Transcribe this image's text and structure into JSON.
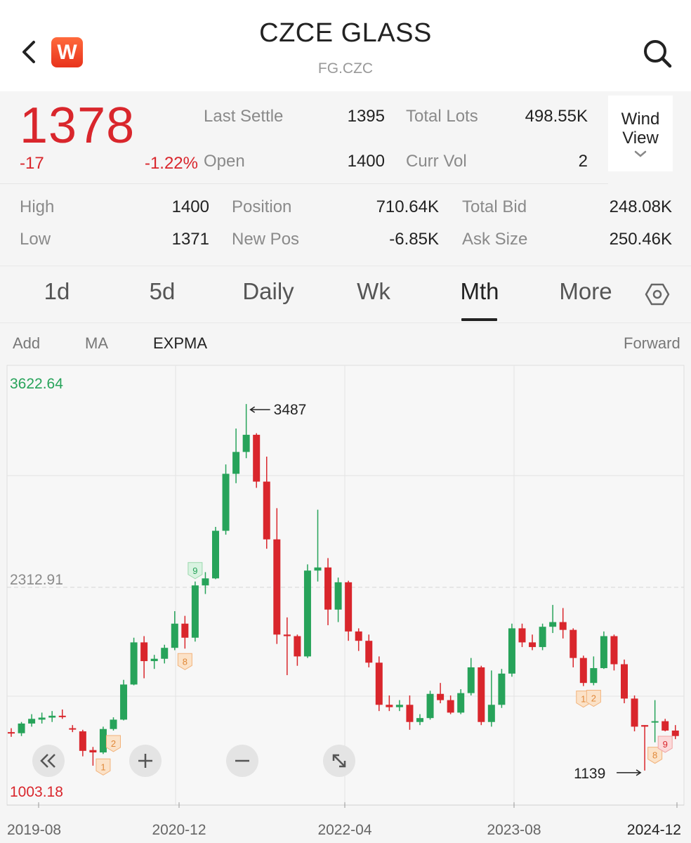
{
  "header": {
    "title": "CZCE GLASS",
    "subtitle": "FG.CZC",
    "logo_letter": "W",
    "back_icon": "chevron-left-icon",
    "search_icon": "search-icon"
  },
  "quote": {
    "last": "1378",
    "change": "-17",
    "change_pct": "-1.22%",
    "fields": {
      "last_settle": {
        "label": "Last Settle",
        "value": "1395"
      },
      "total_lots": {
        "label": "Total Lots",
        "value": "498.55K"
      },
      "open": {
        "label": "Open",
        "value": "1400"
      },
      "curr_vol": {
        "label": "Curr Vol",
        "value": "2"
      },
      "high": {
        "label": "High",
        "value": "1400"
      },
      "low": {
        "label": "Low",
        "value": "1371"
      },
      "position": {
        "label": "Position",
        "value": "710.64K"
      },
      "new_pos": {
        "label": "New Pos",
        "value": "-6.85K"
      },
      "total_bid": {
        "label": "Total Bid",
        "value": "248.08K"
      },
      "ask_size": {
        "label": "Ask Size",
        "value": "250.46K"
      }
    },
    "wind_view": {
      "line1": "Wind",
      "line2": "View"
    }
  },
  "tabs": [
    {
      "label": "1d"
    },
    {
      "label": "5d"
    },
    {
      "label": "Daily"
    },
    {
      "label": "Wk"
    },
    {
      "label": "Mth",
      "active": true
    },
    {
      "label": "More"
    }
  ],
  "indicators": {
    "add": "Add",
    "ma": "MA",
    "expma": "EXPMA",
    "forward": "Forward"
  },
  "colors": {
    "up": "#d9262c",
    "down": "#27a35a",
    "accent": "#e8331c"
  },
  "chart_data": {
    "type": "candlestick",
    "ylim": [
      1003.18,
      3622.64
    ],
    "y_labels": {
      "top": "3622.64",
      "mid": "2312.91",
      "bottom": "1003.18"
    },
    "x_tick_labels": [
      "2019-08",
      "2020-12",
      "2022-04",
      "2023-08",
      "2024-12"
    ],
    "annotations": {
      "high": "3487",
      "low": "1139"
    },
    "candles": [
      {
        "d": "2019-08",
        "o": 1385,
        "h": 1410,
        "l": 1355,
        "c": 1378
      },
      {
        "d": "2019-09",
        "o": 1378,
        "h": 1450,
        "l": 1360,
        "c": 1440
      },
      {
        "d": "2019-10",
        "o": 1440,
        "h": 1500,
        "l": 1420,
        "c": 1470
      },
      {
        "d": "2019-11",
        "o": 1465,
        "h": 1510,
        "l": 1440,
        "c": 1478
      },
      {
        "d": "2019-12",
        "o": 1478,
        "h": 1520,
        "l": 1450,
        "c": 1490
      },
      {
        "d": "2020-01",
        "o": 1490,
        "h": 1530,
        "l": 1470,
        "c": 1485
      },
      {
        "d": "2020-02",
        "o": 1410,
        "h": 1430,
        "l": 1385,
        "c": 1405
      },
      {
        "d": "2020-03",
        "o": 1390,
        "h": 1400,
        "l": 1230,
        "c": 1265
      },
      {
        "d": "2020-04",
        "o": 1270,
        "h": 1290,
        "l": 1170,
        "c": 1255
      },
      {
        "d": "2020-05",
        "o": 1255,
        "h": 1420,
        "l": 1245,
        "c": 1405
      },
      {
        "d": "2020-06",
        "o": 1405,
        "h": 1480,
        "l": 1395,
        "c": 1465
      },
      {
        "d": "2020-07",
        "o": 1465,
        "h": 1720,
        "l": 1460,
        "c": 1690
      },
      {
        "d": "2020-08",
        "o": 1690,
        "h": 1990,
        "l": 1685,
        "c": 1960
      },
      {
        "d": "2020-09",
        "o": 1960,
        "h": 2000,
        "l": 1730,
        "c": 1840
      },
      {
        "d": "2020-10",
        "o": 1840,
        "h": 1880,
        "l": 1790,
        "c": 1855
      },
      {
        "d": "2020-11",
        "o": 1855,
        "h": 1945,
        "l": 1825,
        "c": 1925
      },
      {
        "d": "2020-12",
        "o": 1925,
        "h": 2160,
        "l": 1910,
        "c": 2080
      },
      {
        "d": "2021-01",
        "o": 2080,
        "h": 2130,
        "l": 1920,
        "c": 1990
      },
      {
        "d": "2021-02",
        "o": 1990,
        "h": 2350,
        "l": 1965,
        "c": 2325
      },
      {
        "d": "2021-03",
        "o": 2325,
        "h": 2410,
        "l": 2270,
        "c": 2370
      },
      {
        "d": "2021-04",
        "o": 2370,
        "h": 2700,
        "l": 2365,
        "c": 2675
      },
      {
        "d": "2021-05",
        "o": 2675,
        "h": 3100,
        "l": 2650,
        "c": 3040
      },
      {
        "d": "2021-06",
        "o": 3040,
        "h": 3330,
        "l": 2980,
        "c": 3180
      },
      {
        "d": "2021-07",
        "o": 3180,
        "h": 3487,
        "l": 3140,
        "c": 3290
      },
      {
        "d": "2021-08",
        "o": 3290,
        "h": 3300,
        "l": 2950,
        "c": 2990
      },
      {
        "d": "2021-09",
        "o": 2990,
        "h": 3150,
        "l": 2560,
        "c": 2620
      },
      {
        "d": "2021-10",
        "o": 2620,
        "h": 2820,
        "l": 1950,
        "c": 2010
      },
      {
        "d": "2021-11",
        "o": 2010,
        "h": 2120,
        "l": 1750,
        "c": 2000
      },
      {
        "d": "2021-12",
        "o": 2000,
        "h": 2010,
        "l": 1810,
        "c": 1870
      },
      {
        "d": "2022-01",
        "o": 1870,
        "h": 2460,
        "l": 1860,
        "c": 2420
      },
      {
        "d": "2022-02",
        "o": 2420,
        "h": 2810,
        "l": 2350,
        "c": 2440
      },
      {
        "d": "2022-03",
        "o": 2440,
        "h": 2500,
        "l": 2070,
        "c": 2170
      },
      {
        "d": "2022-04",
        "o": 2170,
        "h": 2375,
        "l": 2090,
        "c": 2345
      },
      {
        "d": "2022-05",
        "o": 2345,
        "h": 2355,
        "l": 1970,
        "c": 2030
      },
      {
        "d": "2022-06",
        "o": 2030,
        "h": 2050,
        "l": 1905,
        "c": 1970
      },
      {
        "d": "2022-07",
        "o": 1970,
        "h": 2010,
        "l": 1800,
        "c": 1830
      },
      {
        "d": "2022-08",
        "o": 1830,
        "h": 1870,
        "l": 1520,
        "c": 1560
      },
      {
        "d": "2022-09",
        "o": 1560,
        "h": 1620,
        "l": 1520,
        "c": 1545
      },
      {
        "d": "2022-10",
        "o": 1545,
        "h": 1590,
        "l": 1520,
        "c": 1560
      },
      {
        "d": "2022-11",
        "o": 1560,
        "h": 1620,
        "l": 1400,
        "c": 1450
      },
      {
        "d": "2022-12",
        "o": 1450,
        "h": 1500,
        "l": 1430,
        "c": 1475
      },
      {
        "d": "2023-01",
        "o": 1475,
        "h": 1650,
        "l": 1465,
        "c": 1630
      },
      {
        "d": "2023-02",
        "o": 1630,
        "h": 1700,
        "l": 1570,
        "c": 1590
      },
      {
        "d": "2023-03",
        "o": 1590,
        "h": 1620,
        "l": 1500,
        "c": 1510
      },
      {
        "d": "2023-04",
        "o": 1510,
        "h": 1660,
        "l": 1500,
        "c": 1635
      },
      {
        "d": "2023-05",
        "o": 1635,
        "h": 1860,
        "l": 1620,
        "c": 1800
      },
      {
        "d": "2023-06",
        "o": 1800,
        "h": 1810,
        "l": 1430,
        "c": 1450
      },
      {
        "d": "2023-07",
        "o": 1450,
        "h": 1780,
        "l": 1420,
        "c": 1560
      },
      {
        "d": "2023-08",
        "o": 1560,
        "h": 1790,
        "l": 1540,
        "c": 1760
      },
      {
        "d": "2023-09",
        "o": 1760,
        "h": 2080,
        "l": 1740,
        "c": 2050
      },
      {
        "d": "2023-10",
        "o": 2050,
        "h": 2080,
        "l": 1930,
        "c": 1960
      },
      {
        "d": "2023-11",
        "o": 1960,
        "h": 2010,
        "l": 1910,
        "c": 1930
      },
      {
        "d": "2023-12",
        "o": 1930,
        "h": 2080,
        "l": 1910,
        "c": 2060
      },
      {
        "d": "2024-01",
        "o": 2060,
        "h": 2200,
        "l": 2020,
        "c": 2090
      },
      {
        "d": "2024-02",
        "o": 2090,
        "h": 2180,
        "l": 1985,
        "c": 2040
      },
      {
        "d": "2024-03",
        "o": 2040,
        "h": 2050,
        "l": 1800,
        "c": 1860
      },
      {
        "d": "2024-04",
        "o": 1860,
        "h": 1875,
        "l": 1680,
        "c": 1700
      },
      {
        "d": "2024-05",
        "o": 1700,
        "h": 1870,
        "l": 1685,
        "c": 1795
      },
      {
        "d": "2024-06",
        "o": 1795,
        "h": 2030,
        "l": 1790,
        "c": 2000
      },
      {
        "d": "2024-07",
        "o": 2000,
        "h": 2010,
        "l": 1780,
        "c": 1820
      },
      {
        "d": "2024-08",
        "o": 1820,
        "h": 1850,
        "l": 1570,
        "c": 1600
      },
      {
        "d": "2024-09",
        "o": 1600,
        "h": 1620,
        "l": 1390,
        "c": 1420
      },
      {
        "d": "2024-10",
        "o": 1430,
        "h": 1430,
        "l": 1139,
        "c": 1420
      },
      {
        "d": "2024-11",
        "o": 1450,
        "h": 1590,
        "l": 1320,
        "c": 1455
      },
      {
        "d": "2024-12",
        "o": 1455,
        "h": 1470,
        "l": 1390,
        "c": 1395
      },
      {
        "d": "2025-01",
        "o": 1395,
        "h": 1430,
        "l": 1340,
        "c": 1360
      }
    ],
    "markers": [
      {
        "d": "2020-05",
        "label": "1",
        "kind": "orange",
        "pos": "below"
      },
      {
        "d": "2020-06",
        "label": "2",
        "kind": "orange",
        "pos": "below"
      },
      {
        "d": "2021-01",
        "label": "8",
        "kind": "orange",
        "pos": "below"
      },
      {
        "d": "2021-02",
        "label": "9",
        "kind": "green",
        "pos": "above"
      },
      {
        "d": "2024-04",
        "label": "1",
        "kind": "orange",
        "pos": "below"
      },
      {
        "d": "2024-05",
        "label": "2",
        "kind": "orange",
        "pos": "below"
      },
      {
        "d": "2024-11",
        "label": "8",
        "kind": "orange",
        "pos": "below"
      },
      {
        "d": "2024-12",
        "label": "9",
        "kind": "red",
        "pos": "below"
      }
    ]
  },
  "chart_controls": [
    {
      "name": "scroll-left-button",
      "icon": "double-chevron-left-icon"
    },
    {
      "name": "zoom-in-button",
      "icon": "plus-icon"
    },
    {
      "name": "zoom-out-button",
      "icon": "minus-icon"
    },
    {
      "name": "fullscreen-button",
      "icon": "expand-icon"
    }
  ]
}
